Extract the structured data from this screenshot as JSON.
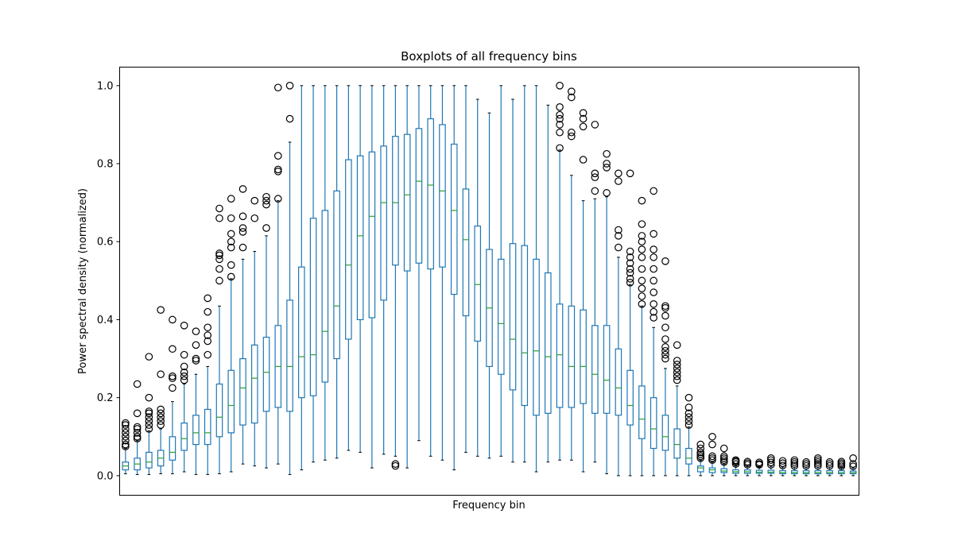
{
  "chart_data": {
    "type": "boxplot",
    "title": "Boxplots of all frequency bins",
    "xlabel": "Frequency bin",
    "ylabel": "Power spectral density (normalized)",
    "ylim": [
      -0.05,
      1.05
    ],
    "yticks": [
      0.0,
      0.2,
      0.4,
      0.6,
      0.8,
      1.0
    ],
    "ytick_labels": [
      "0.0",
      "0.2",
      "0.4",
      "0.6",
      "0.8",
      "1.0"
    ],
    "xticks_visible": false,
    "grid": false,
    "colors": {
      "box": "#1f77b4",
      "median": "#2ca02c",
      "outlier": "#000000"
    },
    "boxes": [
      {
        "q1": 0.015,
        "median": 0.025,
        "q3": 0.035,
        "whislo": 0.005,
        "whishi": 0.07,
        "fliers": [
          0.075,
          0.08,
          0.09,
          0.1,
          0.11,
          0.12,
          0.13,
          0.135
        ]
      },
      {
        "q1": 0.015,
        "median": 0.03,
        "q3": 0.045,
        "whislo": 0.003,
        "whishi": 0.09,
        "fliers": [
          0.095,
          0.1,
          0.11,
          0.12,
          0.125,
          0.16,
          0.235
        ]
      },
      {
        "q1": 0.02,
        "median": 0.035,
        "q3": 0.06,
        "whislo": 0.003,
        "whishi": 0.115,
        "fliers": [
          0.12,
          0.13,
          0.14,
          0.15,
          0.16,
          0.165,
          0.2,
          0.305
        ]
      },
      {
        "q1": 0.025,
        "median": 0.045,
        "q3": 0.065,
        "whislo": 0.005,
        "whishi": 0.12,
        "fliers": [
          0.13,
          0.14,
          0.15,
          0.16,
          0.17,
          0.26,
          0.425
        ]
      },
      {
        "q1": 0.04,
        "median": 0.06,
        "q3": 0.1,
        "whislo": 0.005,
        "whishi": 0.19,
        "fliers": [
          0.225,
          0.25,
          0.255,
          0.325,
          0.4
        ]
      },
      {
        "q1": 0.065,
        "median": 0.095,
        "q3": 0.135,
        "whislo": 0.01,
        "whishi": 0.235,
        "fliers": [
          0.245,
          0.255,
          0.265,
          0.28,
          0.31,
          0.385
        ]
      },
      {
        "q1": 0.08,
        "median": 0.11,
        "q3": 0.155,
        "whislo": 0.003,
        "whishi": 0.26,
        "fliers": [
          0.295,
          0.3,
          0.335,
          0.37
        ]
      },
      {
        "q1": 0.08,
        "median": 0.11,
        "q3": 0.17,
        "whislo": 0.003,
        "whishi": 0.28,
        "fliers": [
          0.31,
          0.345,
          0.36,
          0.38,
          0.42,
          0.455
        ]
      },
      {
        "q1": 0.1,
        "median": 0.15,
        "q3": 0.235,
        "whislo": 0.005,
        "whishi": 0.435,
        "fliers": [
          0.5,
          0.53,
          0.555,
          0.565,
          0.57,
          0.66,
          0.685
        ]
      },
      {
        "q1": 0.11,
        "median": 0.18,
        "q3": 0.27,
        "whislo": 0.01,
        "whishi": 0.505,
        "fliers": [
          0.51,
          0.54,
          0.585,
          0.6,
          0.62,
          0.66,
          0.71
        ]
      },
      {
        "q1": 0.13,
        "median": 0.225,
        "q3": 0.3,
        "whislo": 0.03,
        "whishi": 0.555,
        "fliers": [
          0.585,
          0.625,
          0.635,
          0.665,
          0.735
        ]
      },
      {
        "q1": 0.135,
        "median": 0.25,
        "q3": 0.335,
        "whislo": 0.025,
        "whishi": 0.575,
        "fliers": [
          0.66,
          0.705
        ]
      },
      {
        "q1": 0.165,
        "median": 0.265,
        "q3": 0.355,
        "whislo": 0.02,
        "whishi": 0.615,
        "fliers": [
          0.635,
          0.695,
          0.705,
          0.715
        ]
      },
      {
        "q1": 0.175,
        "median": 0.28,
        "q3": 0.385,
        "whislo": 0.03,
        "whishi": 0.705,
        "fliers": [
          0.71,
          0.78,
          0.785,
          0.82,
          0.995
        ]
      },
      {
        "q1": 0.165,
        "median": 0.28,
        "q3": 0.45,
        "whislo": 0.003,
        "whishi": 0.855,
        "fliers": [
          0.915,
          1.0
        ]
      },
      {
        "q1": 0.2,
        "median": 0.305,
        "q3": 0.535,
        "whislo": 0.015,
        "whishi": 1.0,
        "fliers": []
      },
      {
        "q1": 0.205,
        "median": 0.31,
        "q3": 0.66,
        "whislo": 0.035,
        "whishi": 1.0,
        "fliers": []
      },
      {
        "q1": 0.24,
        "median": 0.37,
        "q3": 0.68,
        "whislo": 0.04,
        "whishi": 1.0,
        "fliers": []
      },
      {
        "q1": 0.3,
        "median": 0.435,
        "q3": 0.73,
        "whislo": 0.045,
        "whishi": 1.0,
        "fliers": []
      },
      {
        "q1": 0.35,
        "median": 0.54,
        "q3": 0.81,
        "whislo": 0.065,
        "whishi": 1.0,
        "fliers": []
      },
      {
        "q1": 0.4,
        "median": 0.615,
        "q3": 0.82,
        "whislo": 0.06,
        "whishi": 1.0,
        "fliers": []
      },
      {
        "q1": 0.405,
        "median": 0.665,
        "q3": 0.83,
        "whislo": 0.02,
        "whishi": 1.0,
        "fliers": []
      },
      {
        "q1": 0.45,
        "median": 0.7,
        "q3": 0.845,
        "whislo": 0.055,
        "whishi": 1.0,
        "fliers": []
      },
      {
        "q1": 0.54,
        "median": 0.7,
        "q3": 0.87,
        "whislo": 0.05,
        "whishi": 1.0,
        "fliers": [
          0.025,
          0.03
        ]
      },
      {
        "q1": 0.525,
        "median": 0.72,
        "q3": 0.875,
        "whislo": 0.02,
        "whishi": 1.0,
        "fliers": []
      },
      {
        "q1": 0.545,
        "median": 0.755,
        "q3": 0.89,
        "whislo": 0.09,
        "whishi": 1.0,
        "fliers": []
      },
      {
        "q1": 0.53,
        "median": 0.745,
        "q3": 0.915,
        "whislo": 0.05,
        "whishi": 1.0,
        "fliers": []
      },
      {
        "q1": 0.535,
        "median": 0.73,
        "q3": 0.9,
        "whislo": 0.04,
        "whishi": 1.0,
        "fliers": []
      },
      {
        "q1": 0.465,
        "median": 0.68,
        "q3": 0.85,
        "whislo": 0.015,
        "whishi": 1.0,
        "fliers": []
      },
      {
        "q1": 0.41,
        "median": 0.605,
        "q3": 0.735,
        "whislo": 0.06,
        "whishi": 1.0,
        "fliers": []
      },
      {
        "q1": 0.345,
        "median": 0.49,
        "q3": 0.64,
        "whislo": 0.05,
        "whishi": 0.965,
        "fliers": []
      },
      {
        "q1": 0.28,
        "median": 0.43,
        "q3": 0.58,
        "whislo": 0.045,
        "whishi": 0.93,
        "fliers": []
      },
      {
        "q1": 0.26,
        "median": 0.39,
        "q3": 0.555,
        "whislo": 0.05,
        "whishi": 1.0,
        "fliers": []
      },
      {
        "q1": 0.22,
        "median": 0.35,
        "q3": 0.595,
        "whislo": 0.035,
        "whishi": 0.965,
        "fliers": []
      },
      {
        "q1": 0.18,
        "median": 0.315,
        "q3": 0.59,
        "whislo": 0.035,
        "whishi": 1.0,
        "fliers": []
      },
      {
        "q1": 0.155,
        "median": 0.32,
        "q3": 0.555,
        "whislo": 0.01,
        "whishi": 1.0,
        "fliers": []
      },
      {
        "q1": 0.16,
        "median": 0.305,
        "q3": 0.52,
        "whislo": 0.035,
        "whishi": 0.95,
        "fliers": []
      },
      {
        "q1": 0.175,
        "median": 0.31,
        "q3": 0.44,
        "whislo": 0.04,
        "whishi": 0.835,
        "fliers": [
          0.84,
          0.88,
          0.9,
          0.915,
          0.925,
          0.945,
          1.0
        ]
      },
      {
        "q1": 0.175,
        "median": 0.28,
        "q3": 0.435,
        "whislo": 0.04,
        "whishi": 0.77,
        "fliers": [
          0.87,
          0.88,
          0.97,
          0.985
        ]
      },
      {
        "q1": 0.185,
        "median": 0.28,
        "q3": 0.425,
        "whislo": 0.01,
        "whishi": 0.705,
        "fliers": [
          0.81,
          0.895,
          0.915,
          0.93
        ]
      },
      {
        "q1": 0.16,
        "median": 0.26,
        "q3": 0.385,
        "whislo": 0.035,
        "whishi": 0.71,
        "fliers": [
          0.73,
          0.765,
          0.775,
          0.9
        ]
      },
      {
        "q1": 0.16,
        "median": 0.245,
        "q3": 0.385,
        "whislo": 0.005,
        "whishi": 0.715,
        "fliers": [
          0.725,
          0.79,
          0.8,
          0.825
        ]
      },
      {
        "q1": 0.155,
        "median": 0.225,
        "q3": 0.325,
        "whislo": 0.0,
        "whishi": 0.56,
        "fliers": [
          0.585,
          0.615,
          0.63,
          0.755,
          0.775
        ]
      },
      {
        "q1": 0.13,
        "median": 0.18,
        "q3": 0.27,
        "whislo": 0.0,
        "whishi": 0.49,
        "fliers": [
          0.495,
          0.505,
          0.52,
          0.53,
          0.545,
          0.56,
          0.575,
          0.775
        ]
      },
      {
        "q1": 0.095,
        "median": 0.145,
        "q3": 0.23,
        "whislo": 0.0,
        "whishi": 0.435,
        "fliers": [
          0.44,
          0.46,
          0.48,
          0.5,
          0.53,
          0.56,
          0.58,
          0.6,
          0.615,
          0.645,
          0.705
        ]
      },
      {
        "q1": 0.07,
        "median": 0.12,
        "q3": 0.2,
        "whislo": 0.0,
        "whishi": 0.38,
        "fliers": [
          0.405,
          0.42,
          0.44,
          0.47,
          0.5,
          0.53,
          0.56,
          0.58,
          0.62,
          0.73
        ]
      },
      {
        "q1": 0.065,
        "median": 0.1,
        "q3": 0.155,
        "whislo": 0.0,
        "whishi": 0.275,
        "fliers": [
          0.3,
          0.31,
          0.32,
          0.33,
          0.35,
          0.38,
          0.41,
          0.43,
          0.435,
          0.55
        ]
      },
      {
        "q1": 0.045,
        "median": 0.08,
        "q3": 0.12,
        "whislo": 0.0,
        "whishi": 0.23,
        "fliers": [
          0.245,
          0.255,
          0.265,
          0.275,
          0.285,
          0.295,
          0.335
        ]
      },
      {
        "q1": 0.03,
        "median": 0.045,
        "q3": 0.07,
        "whislo": 0.0,
        "whishi": 0.125,
        "fliers": [
          0.13,
          0.14,
          0.15,
          0.16,
          0.175,
          0.2
        ]
      },
      {
        "q1": 0.01,
        "median": 0.02,
        "q3": 0.025,
        "whislo": 0.0,
        "whishi": 0.04,
        "fliers": [
          0.045,
          0.05,
          0.055,
          0.06,
          0.07,
          0.08
        ]
      },
      {
        "q1": 0.008,
        "median": 0.015,
        "q3": 0.02,
        "whislo": 0.0,
        "whishi": 0.035,
        "fliers": [
          0.04,
          0.045,
          0.05,
          0.08,
          0.1
        ]
      },
      {
        "q1": 0.008,
        "median": 0.012,
        "q3": 0.018,
        "whislo": 0.0,
        "whishi": 0.03,
        "fliers": [
          0.035,
          0.04,
          0.045,
          0.05,
          0.07
        ]
      },
      {
        "q1": 0.006,
        "median": 0.01,
        "q3": 0.015,
        "whislo": 0.0,
        "whishi": 0.025,
        "fliers": [
          0.03,
          0.035,
          0.038,
          0.04
        ]
      },
      {
        "q1": 0.006,
        "median": 0.01,
        "q3": 0.015,
        "whislo": 0.0,
        "whishi": 0.025,
        "fliers": [
          0.028,
          0.032,
          0.036
        ]
      },
      {
        "q1": 0.006,
        "median": 0.009,
        "q3": 0.014,
        "whislo": 0.0,
        "whishi": 0.024,
        "fliers": [
          0.028,
          0.03,
          0.034
        ]
      },
      {
        "q1": 0.006,
        "median": 0.009,
        "q3": 0.014,
        "whislo": 0.0,
        "whishi": 0.024,
        "fliers": [
          0.028,
          0.034,
          0.04,
          0.045
        ]
      },
      {
        "q1": 0.005,
        "median": 0.008,
        "q3": 0.013,
        "whislo": 0.0,
        "whishi": 0.022,
        "fliers": [
          0.026,
          0.032,
          0.038
        ]
      },
      {
        "q1": 0.005,
        "median": 0.008,
        "q3": 0.013,
        "whislo": 0.0,
        "whishi": 0.022,
        "fliers": [
          0.025,
          0.03,
          0.035,
          0.04
        ]
      },
      {
        "q1": 0.005,
        "median": 0.008,
        "q3": 0.013,
        "whislo": 0.0,
        "whishi": 0.022,
        "fliers": [
          0.025,
          0.03,
          0.035
        ]
      },
      {
        "q1": 0.005,
        "median": 0.008,
        "q3": 0.013,
        "whislo": 0.0,
        "whishi": 0.022,
        "fliers": [
          0.025,
          0.03,
          0.035,
          0.04,
          0.045
        ]
      },
      {
        "q1": 0.005,
        "median": 0.008,
        "q3": 0.013,
        "whislo": 0.0,
        "whishi": 0.022,
        "fliers": [
          0.025,
          0.03,
          0.035
        ]
      },
      {
        "q1": 0.005,
        "median": 0.008,
        "q3": 0.013,
        "whislo": 0.0,
        "whishi": 0.022,
        "fliers": [
          0.024,
          0.028,
          0.032,
          0.036
        ]
      },
      {
        "q1": 0.005,
        "median": 0.008,
        "q3": 0.012,
        "whislo": 0.0,
        "whishi": 0.02,
        "fliers": [
          0.024,
          0.03,
          0.045
        ]
      }
    ]
  }
}
